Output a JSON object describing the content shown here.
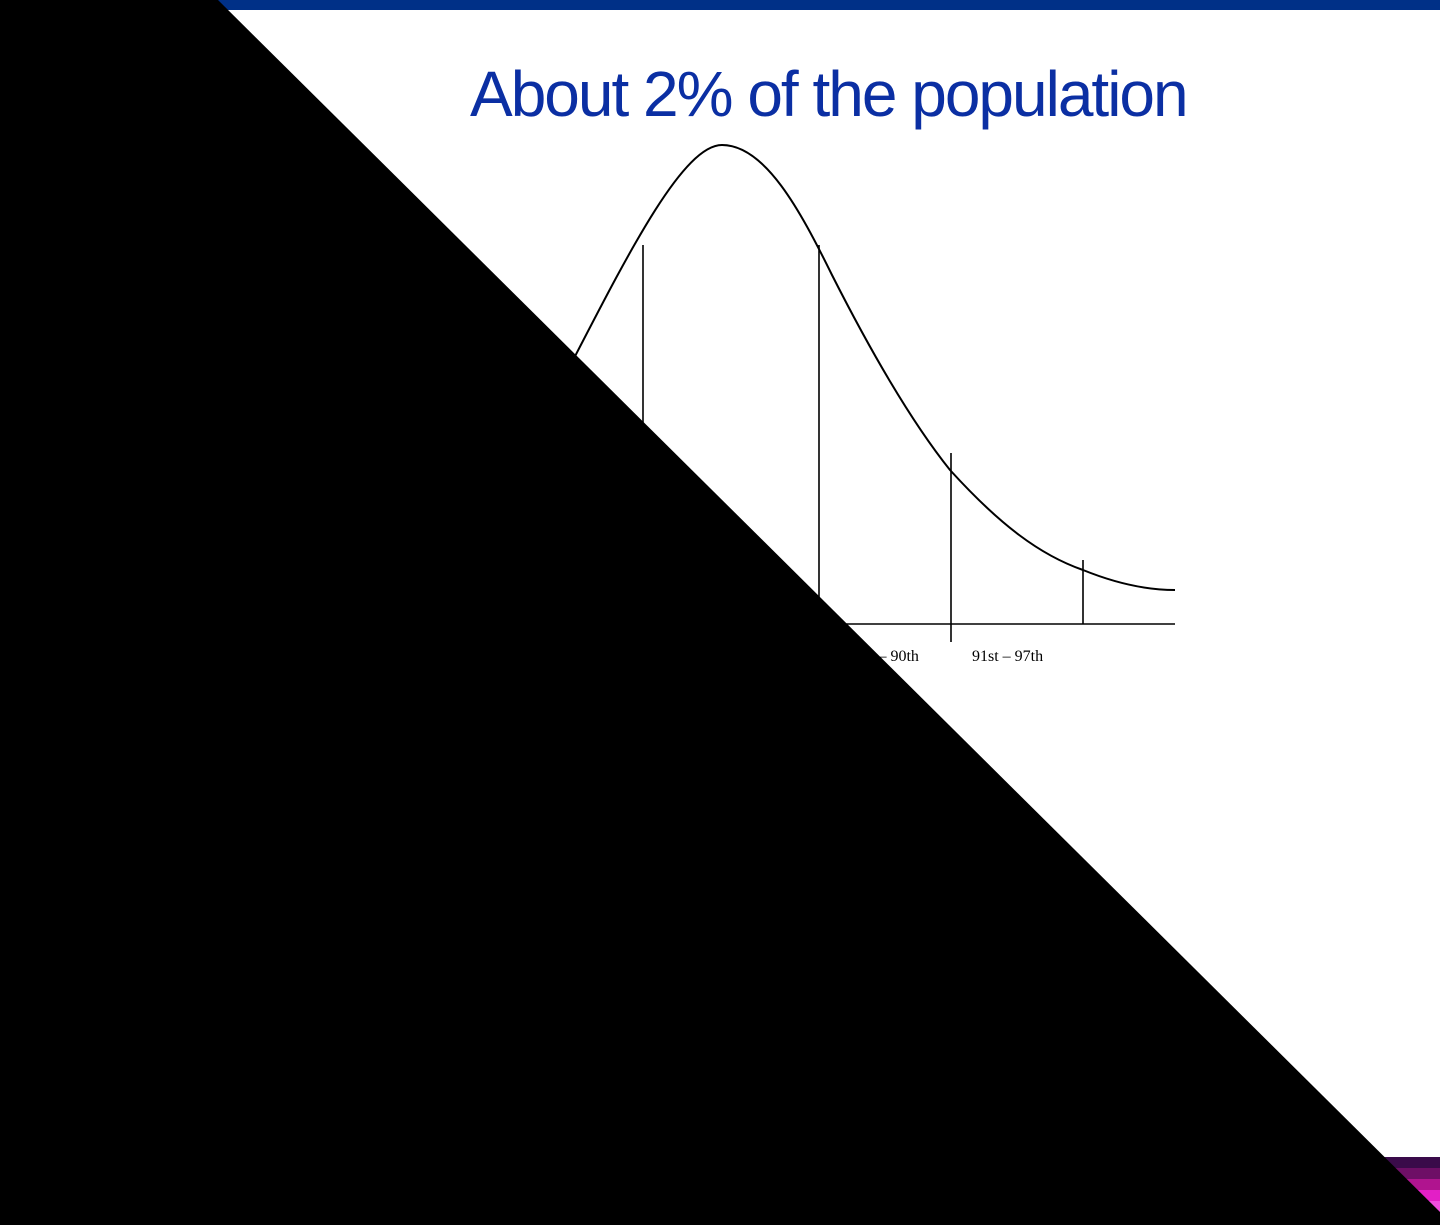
{
  "slide": {
    "title": "About 2% of the population"
  },
  "colors": {
    "top_bar": "#003087",
    "title": "#0b2fa3",
    "curve": "#000000",
    "overlay": "#000000",
    "corner_stripes": [
      "#3a0b4a",
      "#6e0f66",
      "#b0148f",
      "#e31fc6",
      "#f04de0",
      "#ff7cf0"
    ]
  },
  "chart_data": {
    "type": "area",
    "title": "About 2% of the population",
    "xlabel": "",
    "ylabel": "",
    "bands": [
      {
        "label": "th – 90th"
      },
      {
        "label": "91st – 97th"
      }
    ]
  }
}
